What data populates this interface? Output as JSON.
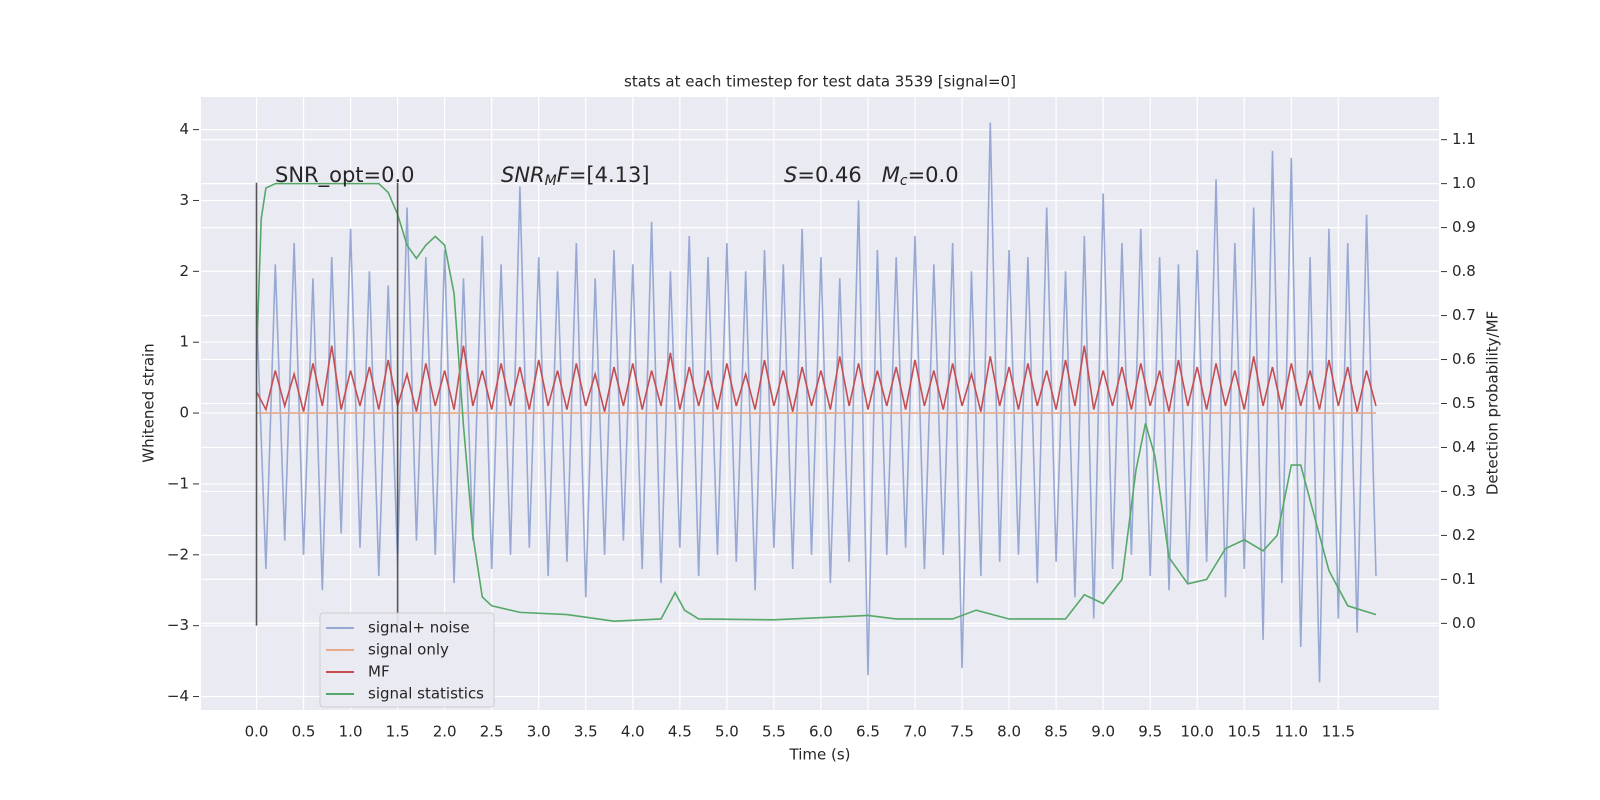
{
  "chart_data": {
    "type": "line",
    "title": "stats at each timestep for test data 3539 [signal=0]",
    "xlabel": "Time (s)",
    "ylabel": "Whitened strain",
    "y2label": "Detection probability/MF",
    "grid": true,
    "legend": "lower left",
    "background": "#eaeaf2",
    "xlim": [
      -0.59,
      12.57
    ],
    "ylim": [
      -4.19,
      4.46
    ],
    "y2lim": [
      -0.197,
      1.197
    ],
    "xticks": [
      {
        "value": 0,
        "label": "0.0"
      },
      {
        "value": 0.5,
        "label": "0.5"
      },
      {
        "value": 1,
        "label": "1.0"
      },
      {
        "value": 1.5,
        "label": "1.5"
      },
      {
        "value": 2,
        "label": "2.0"
      },
      {
        "value": 2.5,
        "label": "2.5"
      },
      {
        "value": 3,
        "label": "3.0"
      },
      {
        "value": 3.5,
        "label": "3.5"
      },
      {
        "value": 4,
        "label": "4.0"
      },
      {
        "value": 4.5,
        "label": "4.5"
      },
      {
        "value": 5,
        "label": "5.0"
      },
      {
        "value": 5.5,
        "label": "5.5"
      },
      {
        "value": 6,
        "label": "6.0"
      },
      {
        "value": 6.5,
        "label": "6.5"
      },
      {
        "value": 7,
        "label": "7.0"
      },
      {
        "value": 7.5,
        "label": "7.5"
      },
      {
        "value": 8,
        "label": "8.0"
      },
      {
        "value": 8.5,
        "label": "8.5"
      },
      {
        "value": 9,
        "label": "9.0"
      },
      {
        "value": 9.5,
        "label": "9.5"
      },
      {
        "value": 10,
        "label": "10.0"
      },
      {
        "value": 10.5,
        "label": "10.5"
      },
      {
        "value": 11,
        "label": "11.0"
      },
      {
        "value": 11.5,
        "label": "11.5"
      }
    ],
    "yticks": [
      {
        "value": -4,
        "label": "−4"
      },
      {
        "value": -3,
        "label": "−3"
      },
      {
        "value": -2,
        "label": "−2"
      },
      {
        "value": -1,
        "label": "−1"
      },
      0,
      1,
      2,
      3,
      4
    ],
    "y2ticks": [
      {
        "value": 0,
        "label": "0.0"
      },
      0.1,
      0.2,
      0.3,
      0.4,
      0.5,
      0.6,
      0.7,
      0.8,
      0.9,
      {
        "value": 1,
        "label": "1.0"
      },
      1.1
    ],
    "vlines": {
      "x": [
        0,
        1.5
      ],
      "ymin": -3,
      "ymax": 3.25,
      "color": "#555555"
    },
    "annotations": [
      [
        {
          "text": "SNR_opt=0.0",
          "style": "normal"
        }
      ],
      [
        {
          "text": "SNR",
          "style": "italic"
        },
        {
          "text": "M",
          "style": "sub"
        },
        {
          "text": "F",
          "style": "italic"
        },
        {
          "text": "=[4.13]",
          "style": "normal"
        }
      ],
      [
        {
          "text": "S",
          "style": "italic"
        },
        {
          "text": "=0.46   ",
          "style": "normal"
        },
        {
          "text": "M",
          "style": "italic"
        },
        {
          "text": "c",
          "style": "sub"
        },
        {
          "text": "=0.0",
          "style": "normal"
        }
      ]
    ],
    "x": [
      0,
      0.1,
      0.2,
      0.3,
      0.4,
      0.5,
      0.6,
      0.7,
      0.8,
      0.9,
      1,
      1.1,
      1.2,
      1.3,
      1.4,
      1.5,
      1.6,
      1.7,
      1.8,
      1.9,
      2,
      2.1,
      2.2,
      2.3,
      2.4,
      2.5,
      2.6,
      2.7,
      2.8,
      2.9,
      3,
      3.1,
      3.2,
      3.3,
      3.4,
      3.5,
      3.6,
      3.7,
      3.8,
      3.9,
      4,
      4.1,
      4.2,
      4.3,
      4.4,
      4.5,
      4.6,
      4.7,
      4.8,
      4.9,
      5,
      5.1,
      5.2,
      5.3,
      5.4,
      5.5,
      5.6,
      5.7,
      5.8,
      5.9,
      6,
      6.1,
      6.2,
      6.3,
      6.4,
      6.5,
      6.6,
      6.7,
      6.8,
      6.9,
      7,
      7.1,
      7.2,
      7.3,
      7.4,
      7.5,
      7.6,
      7.7,
      7.8,
      7.9,
      8,
      8.1,
      8.2,
      8.3,
      8.4,
      8.5,
      8.6,
      8.7,
      8.8,
      8.9,
      9,
      9.1,
      9.2,
      9.3,
      9.4,
      9.5,
      9.6,
      9.7,
      9.8,
      9.9,
      10,
      10.1,
      10.2,
      10.3,
      10.4,
      10.5,
      10.6,
      10.7,
      10.8,
      10.9,
      11,
      11.1,
      11.2,
      11.3,
      11.4,
      11.5,
      11.6,
      11.7,
      11.8,
      11.9
    ],
    "series": [
      {
        "name": "signal+ noise",
        "color": "#97a9d3",
        "values": [
          1.5,
          -2.2,
          2.1,
          -1.8,
          2.4,
          -2.0,
          1.9,
          -2.5,
          2.2,
          -1.7,
          2.6,
          -1.9,
          2.0,
          -2.3,
          1.8,
          -2.1,
          2.9,
          -1.8,
          2.2,
          -2.0,
          2.3,
          -2.4,
          1.9,
          -1.8,
          2.5,
          -2.2,
          2.1,
          -2.0,
          3.2,
          -1.9,
          2.2,
          -2.3,
          2.0,
          -2.1,
          2.4,
          -2.6,
          1.9,
          -2.0,
          2.3,
          -1.8,
          2.1,
          -2.2,
          2.7,
          -2.4,
          2.0,
          -1.9,
          2.5,
          -2.3,
          2.2,
          -2.0,
          2.4,
          -2.1,
          2.0,
          -2.5,
          2.3,
          -1.9,
          2.1,
          -2.2,
          2.6,
          -2.0,
          2.2,
          -2.4,
          1.9,
          -2.1,
          3.0,
          -3.7,
          2.3,
          -2.0,
          2.2,
          -1.9,
          2.5,
          -2.2,
          2.1,
          -2.0,
          2.4,
          -3.6,
          2.0,
          -2.3,
          4.1,
          -2.1,
          2.3,
          -2.0,
          2.2,
          -2.4,
          2.9,
          -2.1,
          2.0,
          -2.6,
          2.5,
          -2.9,
          3.1,
          -2.2,
          2.4,
          -2.0,
          2.6,
          -2.3,
          2.2,
          -2.5,
          2.1,
          -2.4,
          2.3,
          -2.1,
          3.3,
          -2.6,
          2.4,
          -2.2,
          2.9,
          -3.2,
          3.7,
          -2.4,
          3.6,
          -3.3,
          2.2,
          -3.8,
          2.6,
          -2.9,
          2.4,
          -3.1,
          2.8,
          -2.3
        ]
      },
      {
        "name": "signal only",
        "color": "#e8a98a",
        "x": [
          0,
          11.9
        ],
        "values": [
          0,
          0
        ]
      },
      {
        "name": "MF",
        "color": "#c44e52",
        "values": [
          0.3,
          0.05,
          0.6,
          0.1,
          0.55,
          0.02,
          0.7,
          0.1,
          0.95,
          0.05,
          0.6,
          0.1,
          0.65,
          0.05,
          0.75,
          0.1,
          0.55,
          0.02,
          0.7,
          0.1,
          0.6,
          0.05,
          0.95,
          0.1,
          0.6,
          0.05,
          0.7,
          0.1,
          0.65,
          0.05,
          0.75,
          0.1,
          0.6,
          0.05,
          0.7,
          0.1,
          0.55,
          0.02,
          0.65,
          0.1,
          0.7,
          0.05,
          0.6,
          0.1,
          0.85,
          0.05,
          0.65,
          0.1,
          0.6,
          0.05,
          0.7,
          0.1,
          0.55,
          0.05,
          0.75,
          0.1,
          0.6,
          0.02,
          0.65,
          0.1,
          0.6,
          0.05,
          0.8,
          0.1,
          0.7,
          0.05,
          0.6,
          0.1,
          0.65,
          0.05,
          0.75,
          0.1,
          0.6,
          0.05,
          0.7,
          0.1,
          0.55,
          0.02,
          0.8,
          0.1,
          0.65,
          0.05,
          0.7,
          0.1,
          0.6,
          0.05,
          0.75,
          0.1,
          0.95,
          0.05,
          0.6,
          0.1,
          0.65,
          0.05,
          0.7,
          0.1,
          0.6,
          0.02,
          0.75,
          0.1,
          0.65,
          0.05,
          0.7,
          0.1,
          0.6,
          0.05,
          0.8,
          0.1,
          0.65,
          0.05,
          0.7,
          0.1,
          0.6,
          0.05,
          0.75,
          0.1,
          0.65,
          0.02,
          0.6,
          0.1
        ]
      },
      {
        "name": "signal statistics",
        "color": "#55a868",
        "axis": "y2",
        "x": [
          0,
          0.05,
          0.1,
          0.2,
          1.3,
          1.4,
          1.5,
          1.6,
          1.7,
          1.8,
          1.9,
          2.0,
          2.1,
          2.2,
          2.3,
          2.4,
          2.5,
          2.8,
          3.3,
          3.8,
          4.3,
          4.45,
          4.55,
          4.7,
          5.5,
          6.5,
          6.8,
          7.4,
          7.65,
          8.0,
          8.6,
          8.8,
          9.0,
          9.2,
          9.35,
          9.45,
          9.55,
          9.7,
          9.9,
          10.1,
          10.3,
          10.5,
          10.7,
          10.85,
          11.0,
          11.1,
          11.25,
          11.4,
          11.6,
          11.9
        ],
        "values": [
          0.6,
          0.92,
          0.99,
          1.0,
          1.0,
          0.98,
          0.93,
          0.86,
          0.83,
          0.86,
          0.88,
          0.86,
          0.75,
          0.45,
          0.2,
          0.06,
          0.04,
          0.025,
          0.02,
          0.005,
          0.01,
          0.07,
          0.03,
          0.01,
          0.008,
          0.018,
          0.01,
          0.01,
          0.03,
          0.01,
          0.01,
          0.065,
          0.045,
          0.1,
          0.35,
          0.455,
          0.38,
          0.15,
          0.09,
          0.1,
          0.17,
          0.19,
          0.165,
          0.2,
          0.36,
          0.36,
          0.24,
          0.12,
          0.04,
          0.02
        ]
      }
    ]
  }
}
